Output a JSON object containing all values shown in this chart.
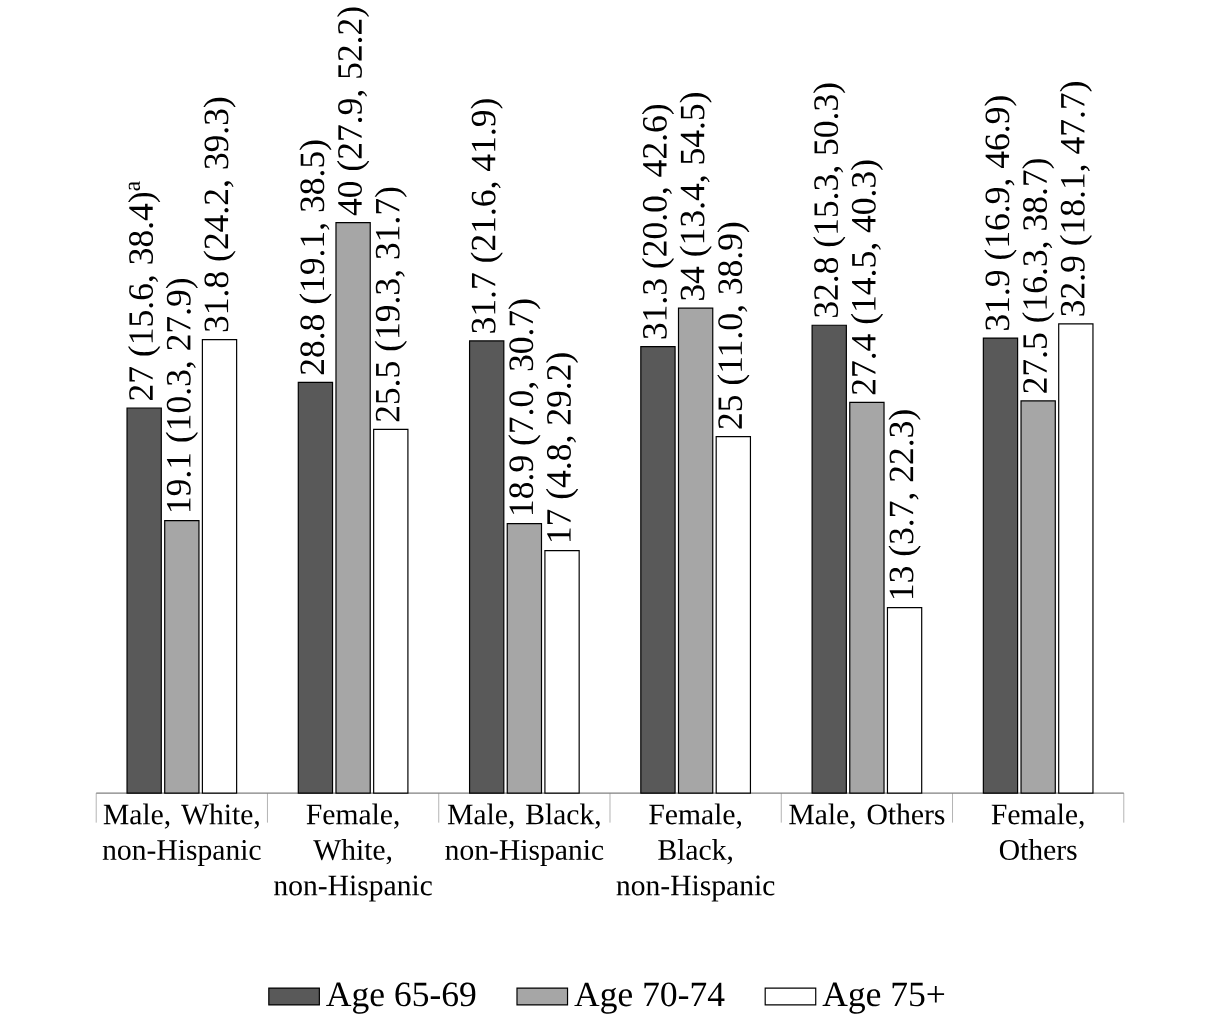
{
  "chart_data": {
    "type": "bar",
    "categories": [
      "Male, White, non-Hispanic",
      "Female, White, non-Hispanic",
      "Male, Black, non-Hispanic",
      "Female, Black, non-Hispanic",
      "Male, Others",
      "Female, Others"
    ],
    "series": [
      {
        "name": "Age 65-69",
        "color": "#595959",
        "values": [
          27,
          28.8,
          31.7,
          31.3,
          32.8,
          31.9
        ],
        "value_labels": [
          "27  (15.6, 38.4)$^{a}$",
          "28.8  (19.1, 38.5)",
          "31.7 (21.6, 41.9)",
          "31.3 (20.0, 42.6)",
          "32.8 (15.3, 50.3)",
          "31.9 (16.9, 46.9)"
        ]
      },
      {
        "name": "Age 70-74",
        "color": "#a6a6a6",
        "values": [
          19.1,
          40,
          18.9,
          34,
          27.4,
          27.5
        ],
        "value_labels": [
          "19.1  (10.3, 27.9)",
          "40 (27.9, 52.2)",
          "18.9  (7.0, 30.7)",
          "34 (13.4, 54.5)",
          "27.4  (14.5, 40.3)",
          "27.5  (16.3, 38.7)"
        ]
      },
      {
        "name": "Age 75+",
        "color": "#ffffff",
        "values": [
          31.8,
          25.5,
          17,
          25,
          13,
          32.9
        ],
        "value_labels": [
          "31.8 (24.2, 39.3)",
          "25.5 (19.3, 31.7)",
          "17 (4.8, 29.2)",
          "25  (11.0, 38.9)",
          "13 (3.7, 22.3)",
          "32.9 (18.1, 47.7)"
        ]
      }
    ],
    "legend": "bottom"
  }
}
